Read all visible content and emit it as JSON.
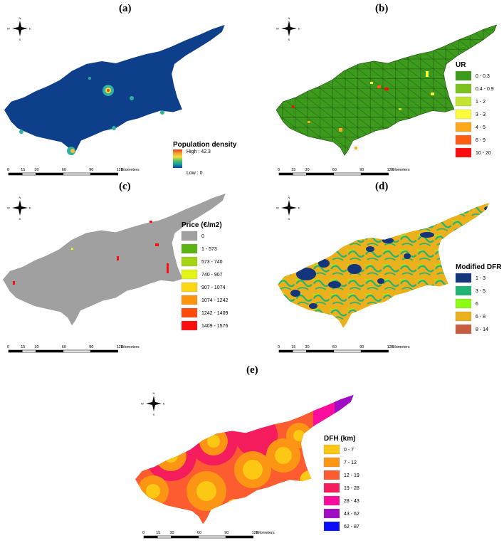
{
  "panels": [
    {
      "label": "(a)",
      "legend_title": "Population density",
      "gradient_high": "High : 42.3",
      "gradient_low": "Low : 0",
      "gradient_colors": [
        "#e04020",
        "#f0a030",
        "#f5e040",
        "#60c060",
        "#10a0a0",
        "#1040a0"
      ]
    },
    {
      "label": "(b)",
      "legend_title": "UR",
      "classes": [
        {
          "label": "0 - 0.3",
          "color": "#3c9a1c"
        },
        {
          "label": "0.4 - 0.9",
          "color": "#7cc21c"
        },
        {
          "label": "1 - 2",
          "color": "#c4e434"
        },
        {
          "label": "3 - 3",
          "color": "#fcfc3c"
        },
        {
          "label": "4 - 5",
          "color": "#fca81c"
        },
        {
          "label": "6 - 9",
          "color": "#fc5c14"
        },
        {
          "label": "10 - 20",
          "color": "#fc0c0c"
        }
      ]
    },
    {
      "label": "(c)",
      "legend_title": "Price (€/m2)",
      "classes": [
        {
          "label": "0",
          "color": "#a0a0a0"
        },
        {
          "label": "1 - 573",
          "color": "#5cb414"
        },
        {
          "label": "573 - 740",
          "color": "#a4d414"
        },
        {
          "label": "740 - 907",
          "color": "#e4f414"
        },
        {
          "label": "907 - 1074",
          "color": "#fcd814"
        },
        {
          "label": "1074 - 1242",
          "color": "#fc9410"
        },
        {
          "label": "1242 - 1409",
          "color": "#fc4c0c"
        },
        {
          "label": "1409 - 1576",
          "color": "#fc0c0c"
        }
      ]
    },
    {
      "label": "(d)",
      "legend_title": "Modified DFR",
      "classes": [
        {
          "label": "1 - 3",
          "color": "#14347c"
        },
        {
          "label": "3 - 5",
          "color": "#20b474"
        },
        {
          "label": "6",
          "color": "#8cfc14"
        },
        {
          "label": "6 - 8",
          "color": "#ecb01c"
        },
        {
          "label": "8 - 14",
          "color": "#c85c40"
        }
      ]
    },
    {
      "label": "(e)",
      "legend_title": "DFH (km)",
      "classes": [
        {
          "label": "0 - 7",
          "color": "#fcc814"
        },
        {
          "label": "7 - 12",
          "color": "#fc9414"
        },
        {
          "label": "12 - 19",
          "color": "#fc5c30"
        },
        {
          "label": "19 - 28",
          "color": "#f41c5c"
        },
        {
          "label": "28 - 43",
          "color": "#fc0c9c"
        },
        {
          "label": "43 - 62",
          "color": "#a00cc4"
        },
        {
          "label": "62 - 87",
          "color": "#0c0cfc"
        }
      ]
    }
  ],
  "scale_bar": {
    "ticks": [
      "0",
      "15",
      "30",
      "60",
      "90",
      "120"
    ],
    "unit": "Kilometers"
  },
  "compass": {
    "n": "N",
    "s": "S",
    "e": "E",
    "w": "W"
  }
}
